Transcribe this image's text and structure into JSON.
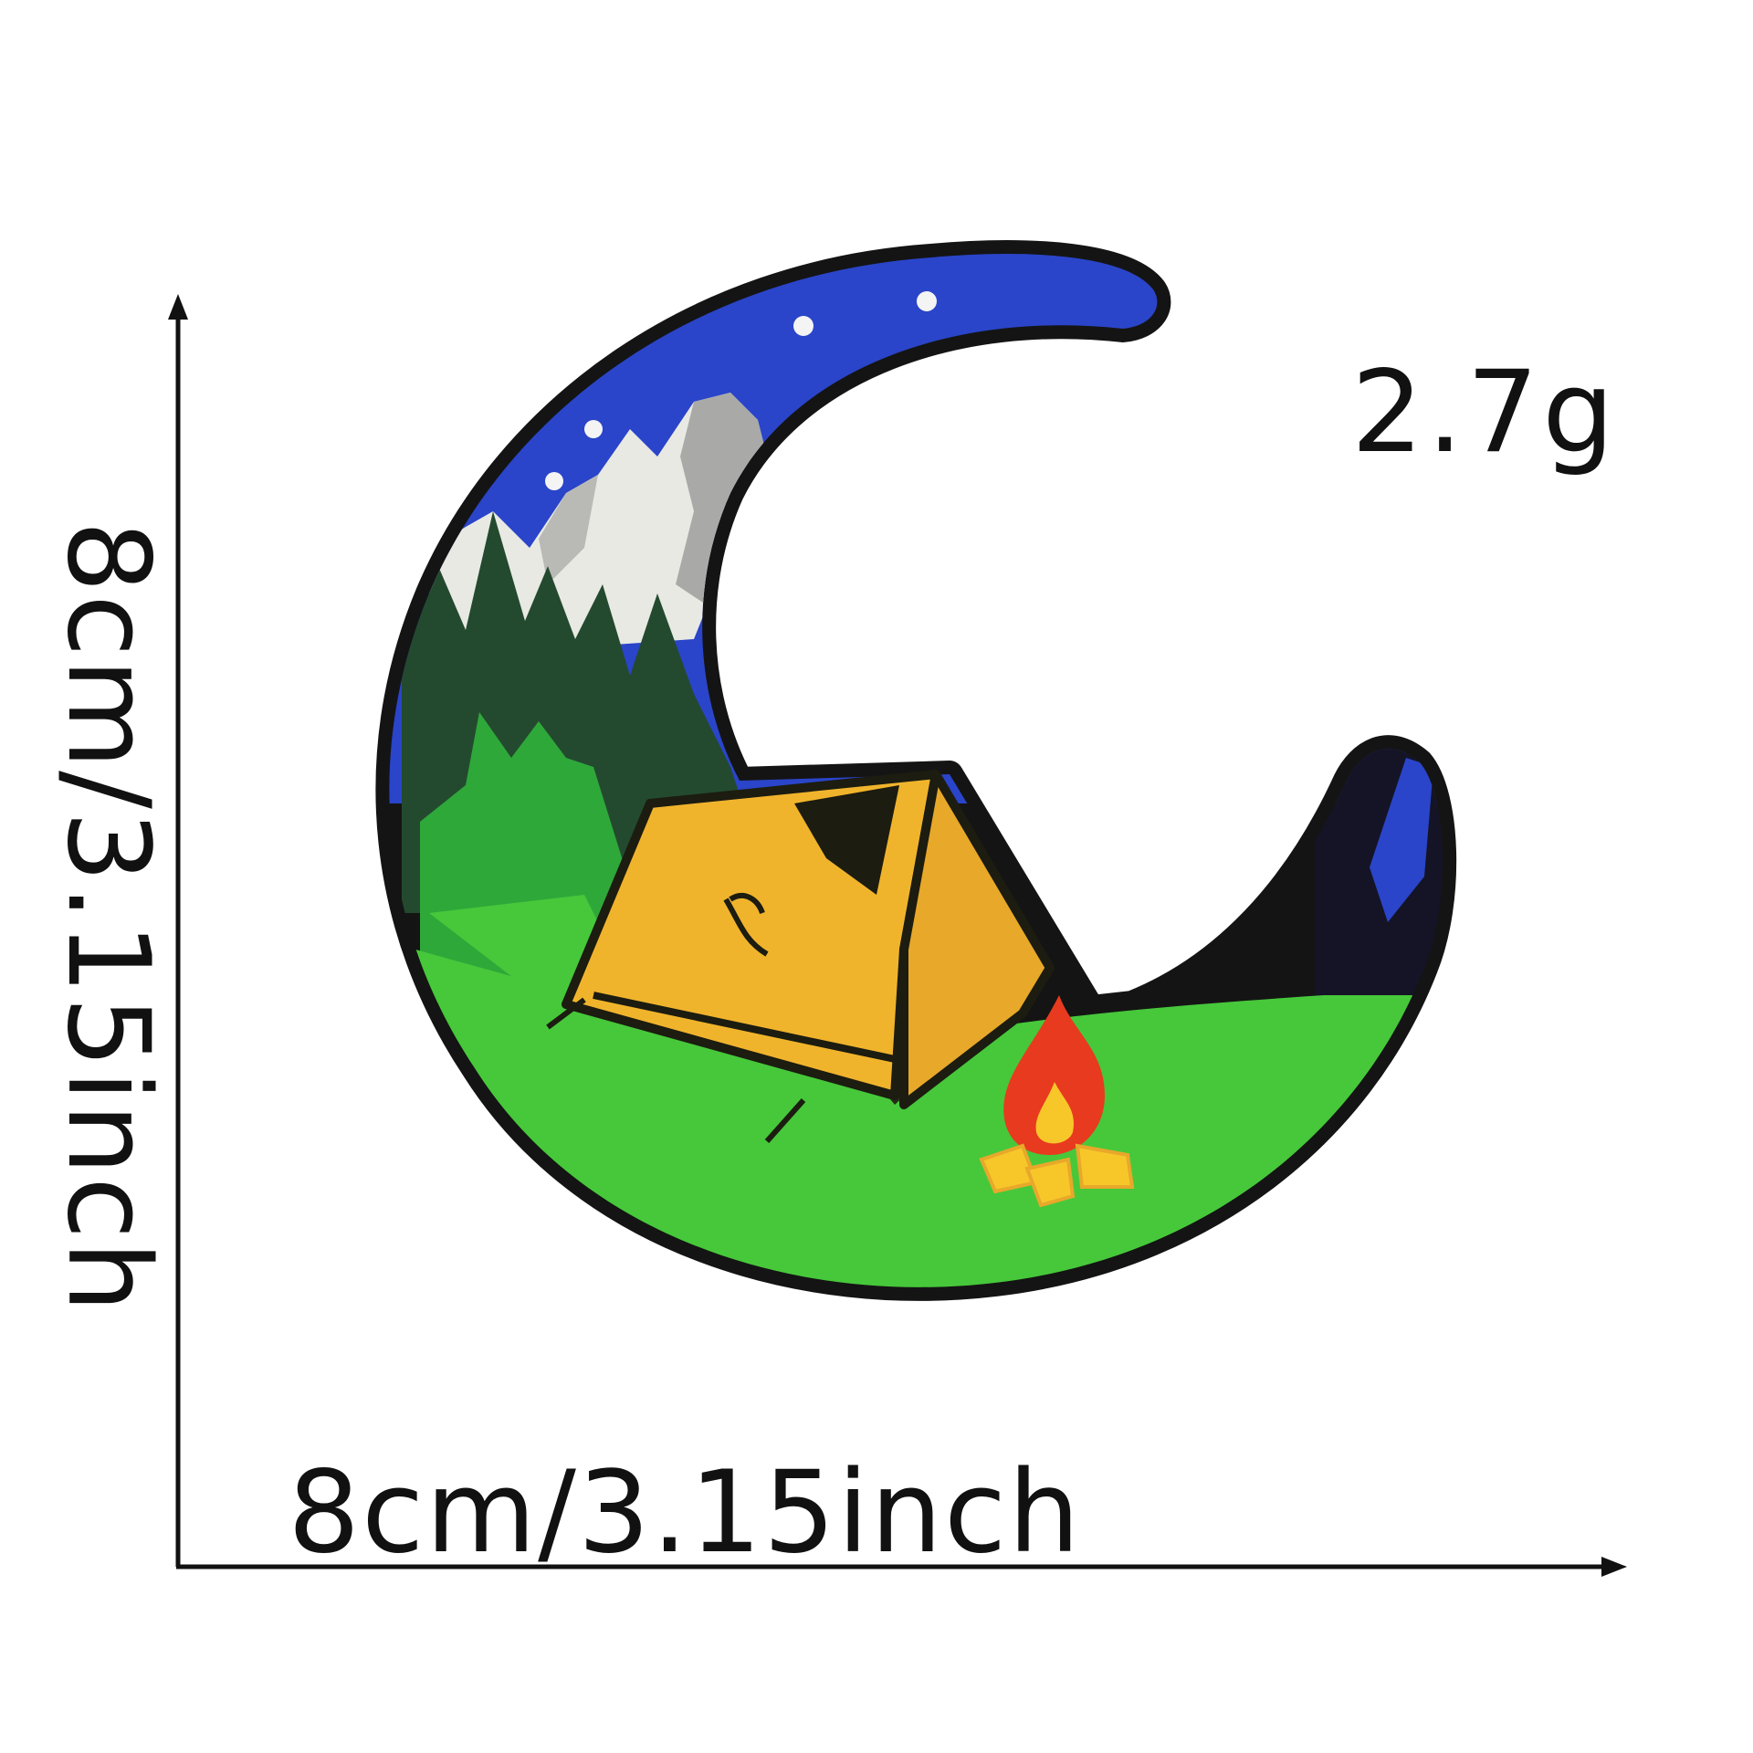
{
  "product": {
    "weight": "2.7g",
    "width_dimension": "8cm/3.15inch",
    "height_dimension": "8cm/3.15inch"
  },
  "patch": {
    "shape": "crescent-moon",
    "scene": [
      "night sky",
      "stars",
      "snowy mountains",
      "pine forest",
      "tent",
      "campfire",
      "grass"
    ],
    "colors": {
      "border": "#141414",
      "sky": "#2a45c9",
      "mountain": "#e9e9e4",
      "mountain_shadow": "#a9aaa7",
      "forest_dark": "#234a2f",
      "forest_light": "#2fa83a",
      "grass": "#46c83a",
      "tent": "#f0b42c",
      "tent_shadow": "#2a2a1a",
      "fire_red": "#e83a1e",
      "fire_yellow": "#f7c72a"
    }
  },
  "icons": {
    "vertical_arrow": "arrow-up-icon",
    "horizontal_arrow": "arrow-right-icon"
  }
}
